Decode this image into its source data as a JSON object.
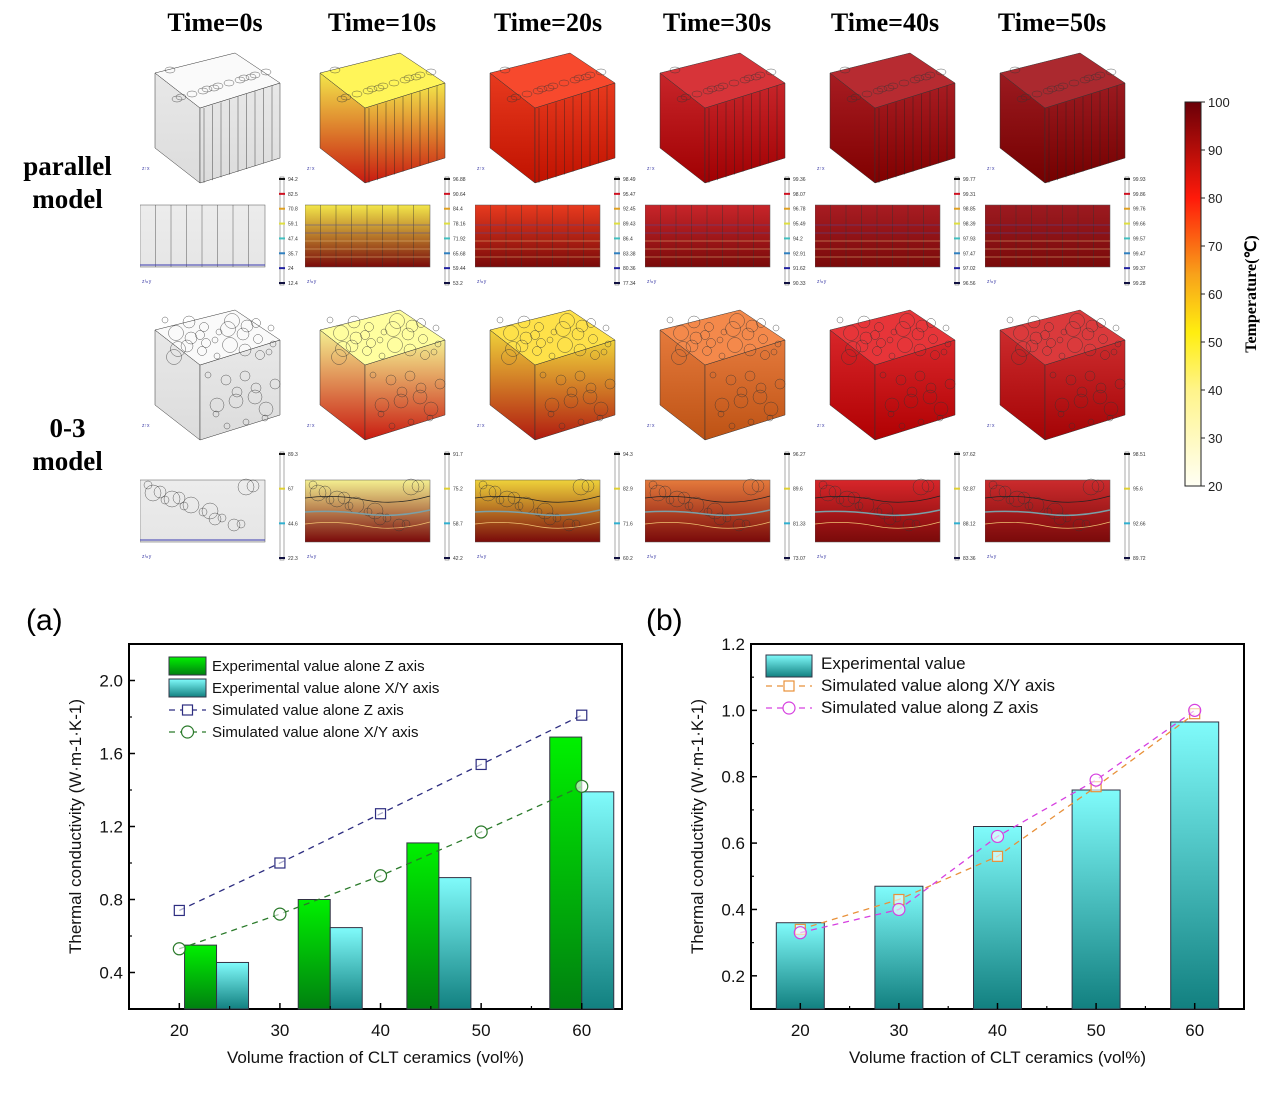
{
  "header": {
    "time_labels": [
      "Time=0s",
      "Time=10s",
      "Time=20s",
      "Time=30s",
      "Time=40s",
      "Time=50s"
    ]
  },
  "rows": {
    "parallel": {
      "label_line1": "parallel",
      "label_line2": "model"
    },
    "zero3": {
      "label_line1": "0-3",
      "label_line2": "model"
    }
  },
  "simulation": {
    "parallel_3d_colors": [
      "#e8e8e8",
      "#f3e64a",
      "#e83a1e",
      "#c8252a",
      "#a81c22",
      "#9c1a20"
    ],
    "parallel_slice_colorbars": [
      [
        "94.2",
        "82.5",
        "70.8",
        "59.1",
        "47.4",
        "35.7",
        "24",
        "12.4"
      ],
      [
        "96.88",
        "90.64",
        "84.4",
        "78.16",
        "71.92",
        "65.68",
        "59.44",
        "53.2"
      ],
      [
        "98.49",
        "95.47",
        "92.45",
        "89.43",
        "86.4",
        "83.38",
        "80.36",
        "77.34"
      ],
      [
        "99.36",
        "98.07",
        "96.78",
        "95.49",
        "94.2",
        "92.91",
        "91.62",
        "90.33"
      ],
      [
        "99.77",
        "99.31",
        "98.85",
        "98.39",
        "97.93",
        "97.47",
        "97.02",
        "96.56"
      ],
      [
        "99.93",
        "99.86",
        "99.76",
        "99.66",
        "99.57",
        "99.47",
        "99.37",
        "99.28"
      ]
    ],
    "zero3_3d_colors": [
      "#e8e8e8",
      "#f4ef90",
      "#efd23a",
      "#e57a3c",
      "#d8262a",
      "#cc2b2d"
    ],
    "zero3_slice_colorbars": [
      [
        "89.3",
        "67",
        "44.6",
        "22.3"
      ],
      [
        "91.7",
        "75.2",
        "58.7",
        "42.2"
      ],
      [
        "94.3",
        "82.9",
        "71.6",
        "60.2"
      ],
      [
        "96.27",
        "89.6",
        "81.33",
        "73.07"
      ],
      [
        "97.62",
        "92.87",
        "88.12",
        "83.36"
      ],
      [
        "98.51",
        "95.6",
        "92.66",
        "89.72"
      ]
    ],
    "axis_unit": "mm"
  },
  "colorbar": {
    "title": "Temperature(℃)",
    "min": 20,
    "max": 100,
    "ticks": [
      "100",
      "90",
      "80",
      "70",
      "60",
      "50",
      "40",
      "30",
      "20"
    ]
  },
  "chart_data": [
    {
      "panel": "(a)",
      "type": "bar",
      "title": "",
      "xlabel": "Volume fraction of CLT ceramics (vol%)",
      "ylabel": "Thermal conductivity (W·m-1·K-1)",
      "xlim": [
        15,
        64
      ],
      "ylim": [
        0.2,
        2.2
      ],
      "xticks": [
        "20",
        "30",
        "40",
        "50",
        "60"
      ],
      "xtick_values": [
        20,
        30,
        40,
        50,
        60
      ],
      "yticks": [
        "0.4",
        "0.8",
        "1.2",
        "1.6",
        "2.0"
      ],
      "ytick_values": [
        0.4,
        0.8,
        1.2,
        1.6,
        2.0
      ],
      "legend_position": "top-left",
      "bar_group_centers": [
        23.7,
        35.0,
        45.8,
        60.0
      ],
      "bars": [
        {
          "name": "Experimental value alone Z axis",
          "color": "#00e000",
          "values": [
            0.55,
            0.8,
            1.11,
            1.69
          ]
        },
        {
          "name": "Experimental value alone X/Y axis",
          "color": "#7ff7f7",
          "values": [
            0.455,
            0.646,
            0.92,
            1.39
          ]
        }
      ],
      "series": [
        {
          "name": "Simulated value alone Z axis",
          "color": "#2d2d80",
          "marker": "square",
          "x": [
            20,
            30,
            40,
            50,
            60
          ],
          "values": [
            0.74,
            1.0,
            1.27,
            1.54,
            1.81
          ]
        },
        {
          "name": "Simulated value alone X/Y axis",
          "color": "#2a7a2a",
          "marker": "circle",
          "x": [
            20,
            30,
            40,
            50,
            60
          ],
          "values": [
            0.53,
            0.72,
            0.93,
            1.17,
            1.42
          ]
        }
      ]
    },
    {
      "panel": "(b)",
      "type": "bar",
      "title": "",
      "xlabel": "Volume fraction of CLT ceramics (vol%)",
      "ylabel": "Thermal conductivity (W·m-1·K-1)",
      "xlim": [
        15,
        65
      ],
      "ylim": [
        0.1,
        1.2
      ],
      "xticks": [
        "20",
        "30",
        "40",
        "50",
        "60"
      ],
      "xtick_values": [
        20,
        30,
        40,
        50,
        60
      ],
      "yticks": [
        "0.2",
        "0.4",
        "0.6",
        "0.8",
        "1.0",
        "1.2"
      ],
      "ytick_values": [
        0.2,
        0.4,
        0.6,
        0.8,
        1.0,
        1.2
      ],
      "legend_position": "top-left",
      "bar_group_centers": [
        20,
        30,
        40,
        50,
        60
      ],
      "bars": [
        {
          "name": "Experimental value",
          "color": "#7ff7f7",
          "values": [
            0.36,
            0.47,
            0.65,
            0.76,
            0.965
          ]
        }
      ],
      "series": [
        {
          "name": "Simulated value along X/Y axis",
          "color": "#e8913a",
          "marker": "square",
          "x": [
            20,
            30,
            40,
            50,
            60
          ],
          "values": [
            0.34,
            0.43,
            0.56,
            0.77,
            0.99
          ]
        },
        {
          "name": "Simulated value along Z axis",
          "color": "#d640e0",
          "marker": "circle",
          "x": [
            20,
            30,
            40,
            50,
            60
          ],
          "values": [
            0.33,
            0.4,
            0.62,
            0.79,
            1.0
          ]
        }
      ]
    }
  ]
}
